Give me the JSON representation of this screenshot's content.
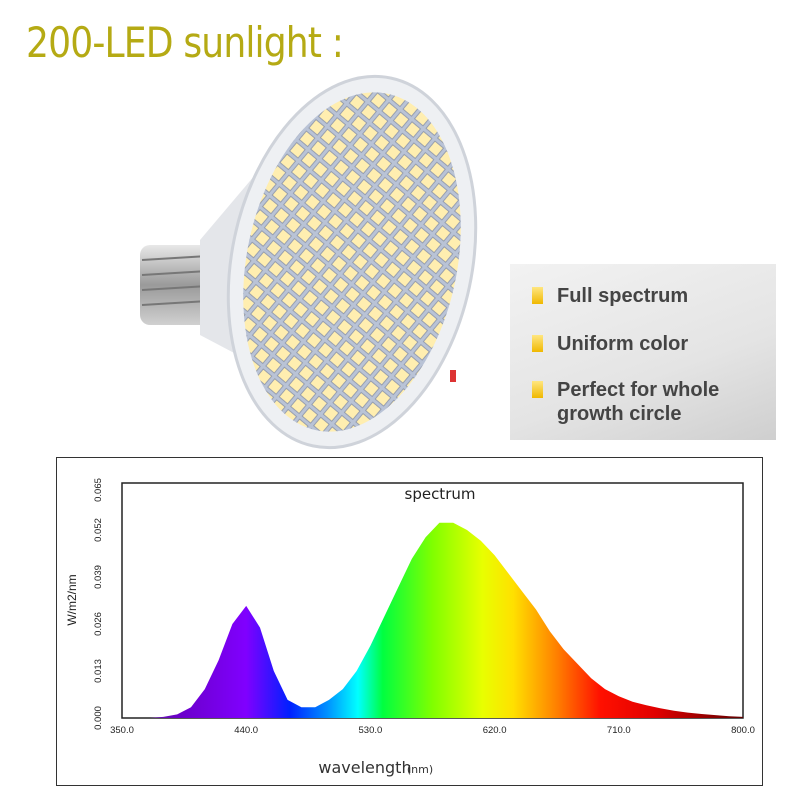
{
  "title": "200-LED sunlight :",
  "features": [
    {
      "text": "Full spectrum"
    },
    {
      "text": "Uniform color"
    },
    {
      "text": "Perfect for whole growth circle",
      "line1": "Perfect for whole",
      "line2": "growth circle"
    }
  ],
  "colors": {
    "title": "#b5aa14",
    "bullet": "#f5c400",
    "led": "#ffe9a0"
  },
  "chart_data": {
    "type": "area",
    "title": "spectrum",
    "xlabel": "wavelength",
    "xlabel_unit": "(nm)",
    "ylabel": "W/m2/nm",
    "xlim": [
      350,
      800
    ],
    "ylim": [
      0,
      0.065
    ],
    "x_ticks": [
      "350.0",
      "440.0",
      "530.0",
      "620.0",
      "710.0",
      "800.0"
    ],
    "y_ticks": [
      "0.000",
      "0.013",
      "0.026",
      "0.039",
      "0.052",
      "0.065"
    ],
    "grid": false,
    "fill": "visible-spectrum-gradient",
    "x": [
      350,
      360,
      370,
      380,
      390,
      400,
      410,
      420,
      430,
      440,
      450,
      460,
      470,
      480,
      490,
      500,
      510,
      520,
      530,
      540,
      550,
      560,
      570,
      580,
      590,
      600,
      610,
      620,
      630,
      640,
      650,
      660,
      670,
      680,
      690,
      700,
      710,
      720,
      730,
      740,
      750,
      760,
      770,
      780,
      790,
      800
    ],
    "values": [
      0,
      0,
      0,
      0.0003,
      0.001,
      0.003,
      0.008,
      0.016,
      0.026,
      0.031,
      0.025,
      0.013,
      0.005,
      0.003,
      0.003,
      0.005,
      0.008,
      0.013,
      0.02,
      0.028,
      0.036,
      0.044,
      0.05,
      0.054,
      0.054,
      0.052,
      0.049,
      0.045,
      0.04,
      0.035,
      0.03,
      0.024,
      0.019,
      0.015,
      0.011,
      0.008,
      0.006,
      0.0045,
      0.0035,
      0.0027,
      0.002,
      0.0015,
      0.0011,
      0.0008,
      0.0005,
      0.0003
    ]
  }
}
